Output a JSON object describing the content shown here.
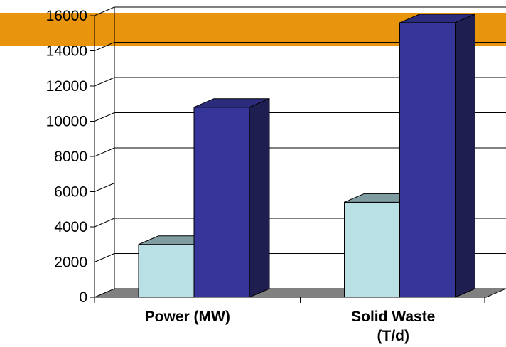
{
  "chart_data": {
    "type": "bar",
    "title": "",
    "xlabel": "",
    "ylabel": "",
    "categories": [
      {
        "lines": [
          "Power (MW)"
        ]
      },
      {
        "lines": [
          "Solid Waste",
          "(T/d)"
        ]
      }
    ],
    "series": [
      {
        "values": [
          3000,
          5400
        ]
      },
      {
        "values": [
          10800,
          15600
        ]
      }
    ],
    "ylim": [
      0,
      16000
    ],
    "yticks": [
      "0",
      "2000",
      "4000",
      "6000",
      "8000",
      "10000",
      "12000",
      "14000",
      "16000"
    ],
    "grid": true,
    "legend": "none",
    "three_d": true,
    "highlight_band_from": 14300
  },
  "colors": {
    "highlight_band": "#e8940c",
    "series_front": [
      "#b8e0e5",
      "#36369a"
    ],
    "series_top": [
      "#7f9ca0",
      "#2c2c7c"
    ],
    "series_side": [
      "#82a0a4",
      "#1e1e50"
    ],
    "floor": "#808080",
    "grid": "#000000",
    "background": "#ffffff"
  }
}
